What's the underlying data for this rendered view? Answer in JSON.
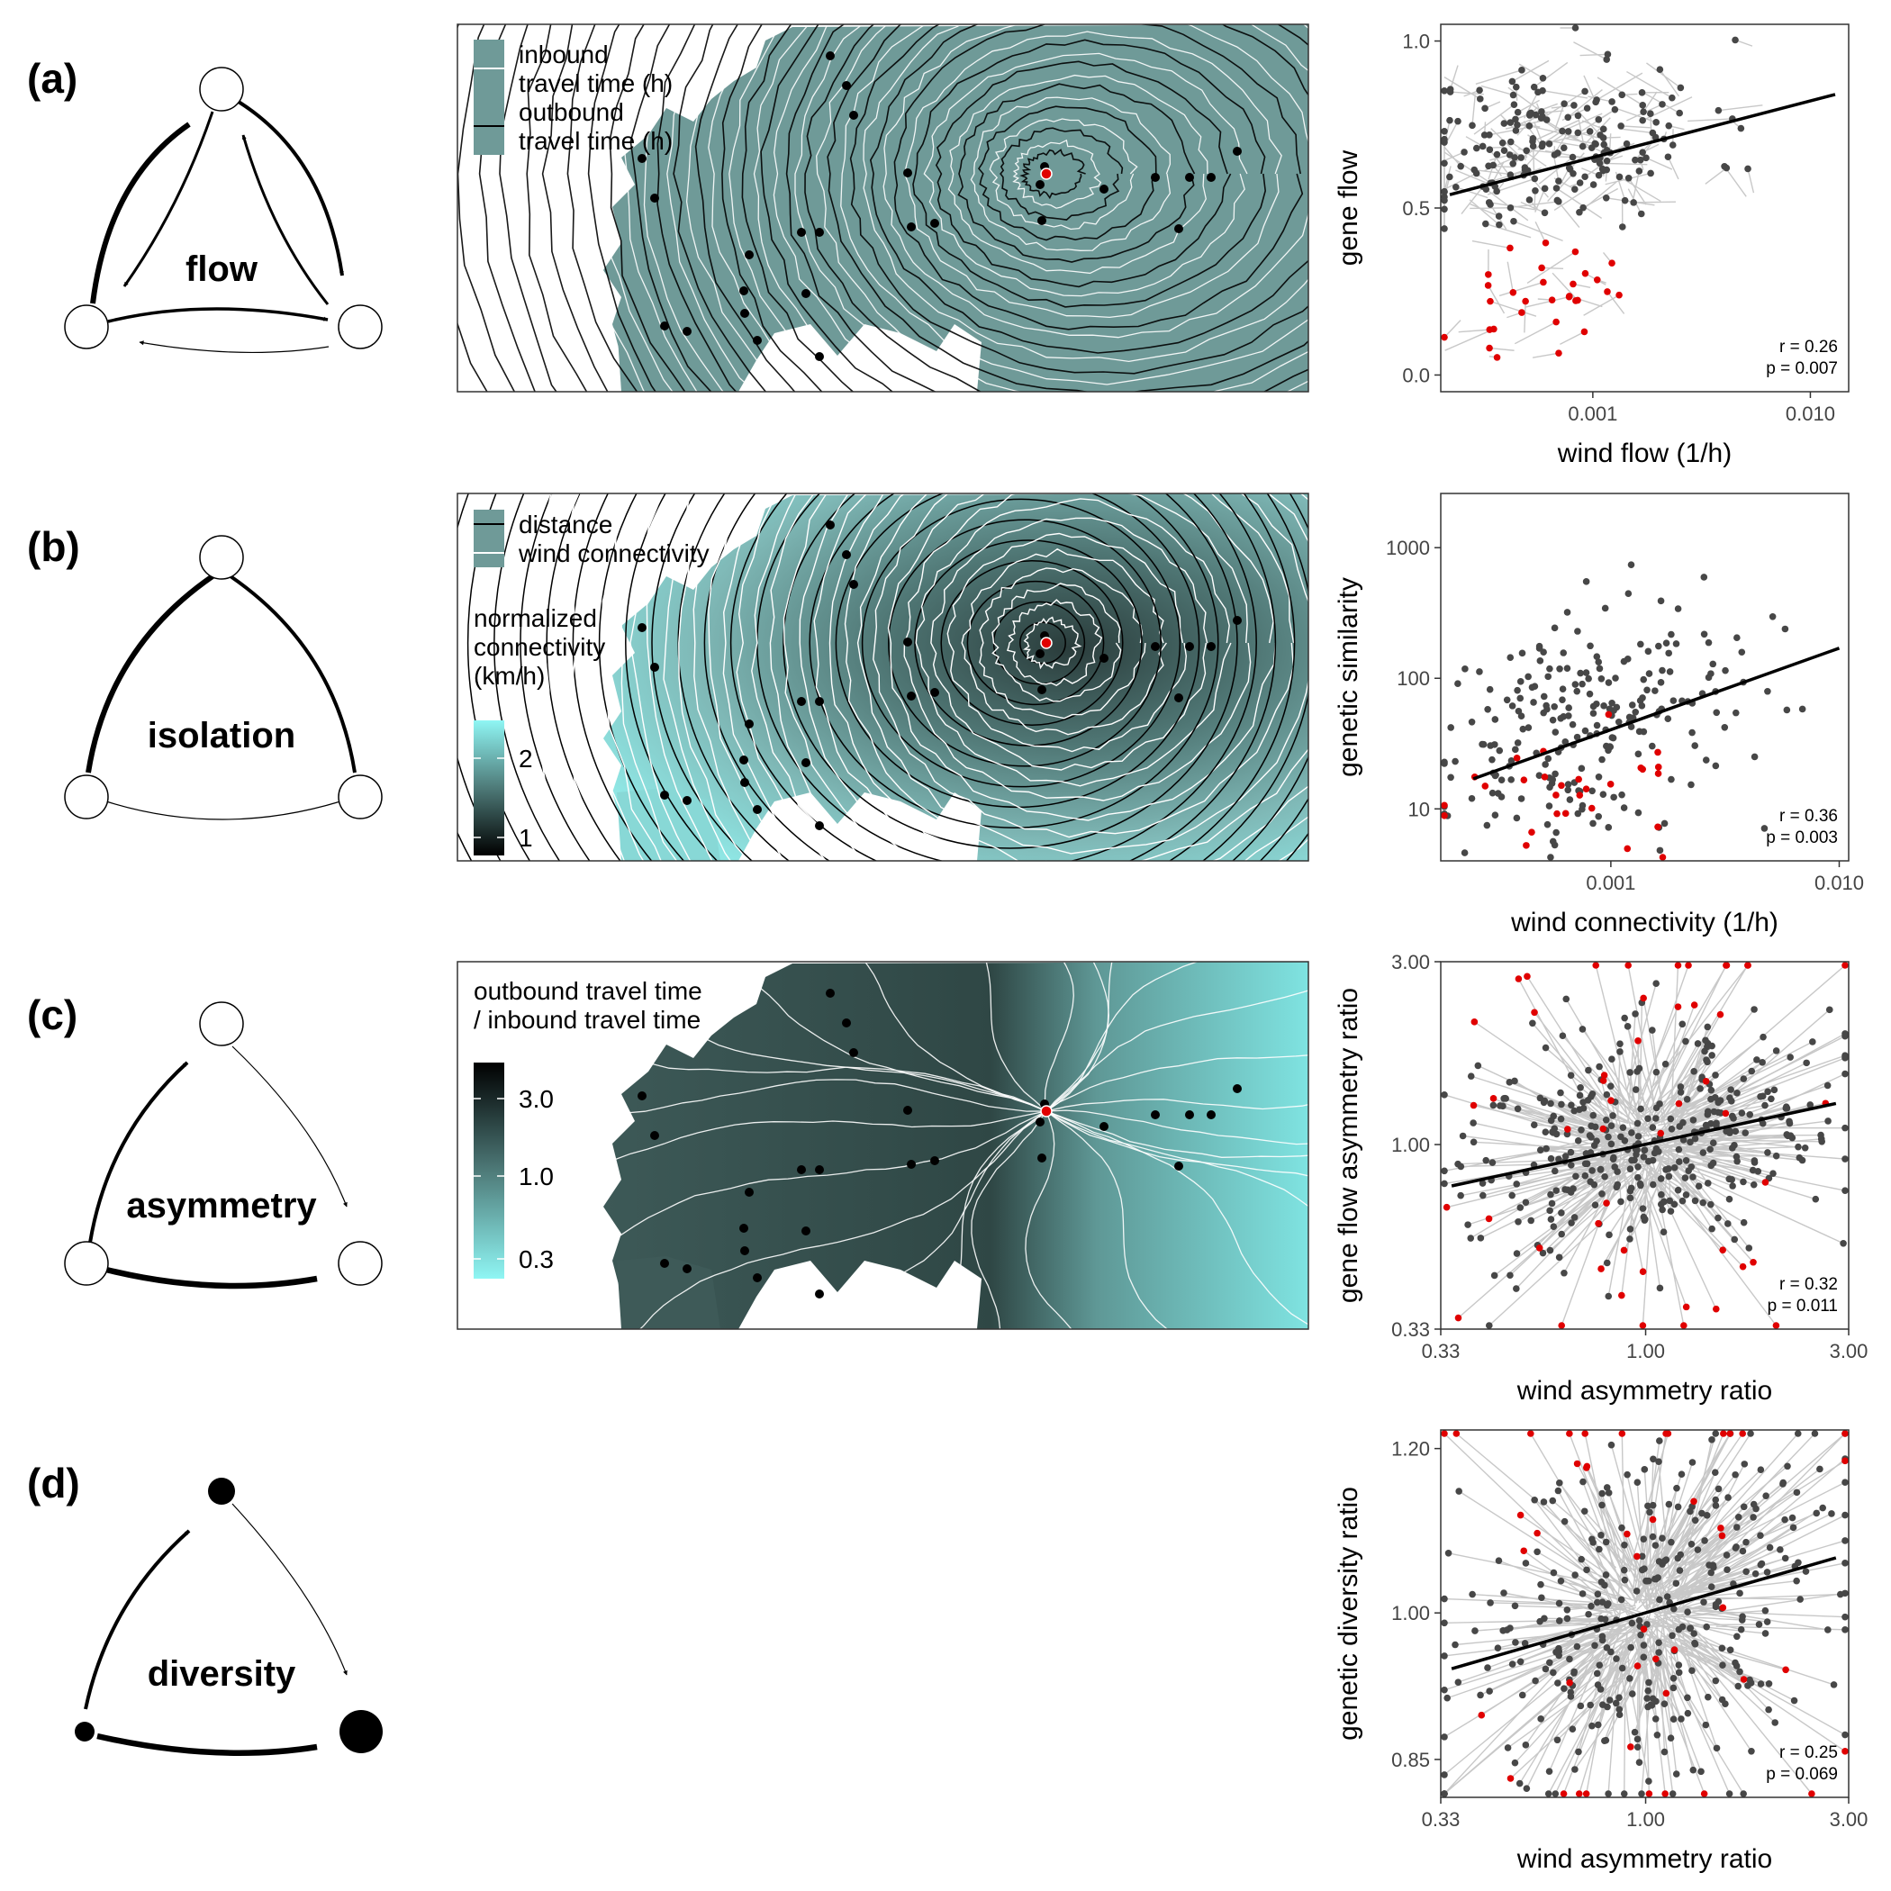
{
  "panels": [
    {
      "label": "(a)",
      "diagram": {
        "word": "flow"
      },
      "map": {
        "legend": [
          {
            "kind": "white-line",
            "text1": "inbound",
            "text2": "travel time (h)"
          },
          {
            "kind": "black-line",
            "text1": "outbound",
            "text2": "travel time (h)"
          }
        ]
      },
      "scatter": {
        "ylabel": "gene flow",
        "xlabel": "wind flow (1/h)",
        "xscale": "log",
        "yscale": "linear",
        "xlim": [
          0.0002,
          0.015
        ],
        "ylim": [
          -0.05,
          1.05
        ],
        "xticks": [
          {
            "v": 0.001,
            "t": "0.001"
          },
          {
            "v": 0.01,
            "t": "0.010"
          }
        ],
        "yticks": [
          {
            "v": 0.0,
            "t": "0.0"
          },
          {
            "v": 0.5,
            "t": "0.5"
          },
          {
            "v": 1.0,
            "t": "1.0"
          }
        ],
        "stats": [
          "r = 0.26",
          "p = 0.007"
        ],
        "fit": {
          "x1": 0.00022,
          "y1": 0.54,
          "x2": 0.013,
          "y2": 0.84
        },
        "connectors": true,
        "seed": 11,
        "cloud": {
          "cx": 0.0007,
          "cy": 0.69,
          "sx": 0.35,
          "sy": 0.13,
          "n": 190,
          "corr": 0.2
        },
        "red": {
          "cx": 0.0006,
          "cy": 0.25,
          "sx": 0.2,
          "sy": 0.08,
          "n": 30
        }
      }
    },
    {
      "label": "(b)",
      "diagram": {
        "word": "isolation"
      },
      "map": {
        "legend": [
          {
            "kind": "black-line",
            "text1": "distance",
            "text2": ""
          },
          {
            "kind": "white-line",
            "text1": "wind connectivity",
            "text2": ""
          }
        ],
        "colorbar": {
          "title": [
            "normalized",
            "connectivity",
            "(km/h)"
          ],
          "ticks": [
            "2",
            "1"
          ]
        }
      },
      "scatter": {
        "ylabel": "genetic similarity",
        "xlabel": "wind connectivity (1/h)",
        "xscale": "log",
        "yscale": "log",
        "xlim": [
          0.00018,
          0.011
        ],
        "ylim": [
          4,
          2600
        ],
        "xticks": [
          {
            "v": 0.001,
            "t": "0.001"
          },
          {
            "v": 0.01,
            "t": "0.010"
          }
        ],
        "yticks": [
          {
            "v": 10,
            "t": "10"
          },
          {
            "v": 100,
            "t": "100"
          },
          {
            "v": 1000,
            "t": "1000"
          }
        ],
        "stats": [
          "r = 0.36",
          "p = 0.003"
        ],
        "fit": {
          "x1": 0.00025,
          "y1": 17,
          "x2": 0.01,
          "y2": 170
        },
        "connectors": false,
        "seed": 29,
        "cloud": {
          "cx": 0.0007,
          "cy": 45,
          "sx": 0.35,
          "sy": 0.45,
          "n": 230,
          "corr": 0.3
        },
        "red": {
          "cx": 0.0006,
          "cy": 12,
          "sx": 0.25,
          "sy": 0.2,
          "n": 28
        }
      }
    },
    {
      "label": "(c)",
      "diagram": {
        "word": "asymmetry"
      },
      "map": {
        "title": [
          "outbound travel time",
          "/ inbound travel time"
        ],
        "colorbar": {
          "ticks": [
            "3.0",
            "1.0",
            "0.3"
          ]
        }
      },
      "scatter": {
        "ylabel": "gene flow asymmetry ratio",
        "xlabel": "wind asymmetry ratio",
        "xscale": "log",
        "yscale": "log",
        "xlim": [
          0.33,
          3.0
        ],
        "ylim": [
          0.33,
          3.0
        ],
        "xticks": [
          {
            "v": 0.33,
            "t": "0.33"
          },
          {
            "v": 1.0,
            "t": "1.00"
          },
          {
            "v": 3.0,
            "t": "3.00"
          }
        ],
        "yticks": [
          {
            "v": 0.33,
            "t": "0.33"
          },
          {
            "v": 1.0,
            "t": "1.00"
          },
          {
            "v": 3.0,
            "t": "3.00"
          }
        ],
        "stats": [
          "r = 0.32",
          "p = 0.011"
        ],
        "fit": {
          "x1": 0.35,
          "y1": 0.78,
          "x2": 2.8,
          "y2": 1.28
        },
        "connectors": true,
        "radial": true,
        "seed": 47,
        "cloud": {
          "cx": 1.0,
          "cy": 1.0,
          "sx": 0.23,
          "sy": 0.14,
          "n": 380,
          "corr": 0.2
        },
        "red": {
          "cx": 1.0,
          "cy": 1.0,
          "sx": 0.25,
          "sy": 0.38,
          "n": 50
        }
      }
    },
    {
      "label": "(d)",
      "diagram": {
        "word": "diversity"
      },
      "scatter": {
        "ylabel": "genetic diversity ratio",
        "xlabel": "wind asymmetry ratio",
        "xscale": "log",
        "yscale": "log",
        "xlim": [
          0.33,
          3.0
        ],
        "ylim": [
          0.815,
          1.225
        ],
        "xticks": [
          {
            "v": 0.33,
            "t": "0.33"
          },
          {
            "v": 1.0,
            "t": "1.00"
          },
          {
            "v": 3.0,
            "t": "3.00"
          }
        ],
        "yticks": [
          {
            "v": 0.85,
            "t": "0.85"
          },
          {
            "v": 1.0,
            "t": "1.00"
          },
          {
            "v": 1.2,
            "t": "1.20"
          }
        ],
        "stats": [
          "r = 0.25",
          "p = 0.069"
        ],
        "fit": {
          "x1": 0.35,
          "y1": 0.94,
          "x2": 2.8,
          "y2": 1.063
        },
        "connectors": true,
        "radial": true,
        "seed": 83,
        "cloud": {
          "cx": 1.0,
          "cy": 1.0,
          "sx": 0.24,
          "sy": 0.045,
          "n": 360,
          "corr": 0.3
        },
        "red": {
          "cx": 1.0,
          "cy": 1.0,
          "sx": 0.3,
          "sy": 0.09,
          "n": 45
        }
      }
    }
  ],
  "colors": {
    "map_teal": "#6f9a98",
    "map_dark": "#2e4644",
    "map_light": "#7fe8e6",
    "point_dark": "#474747",
    "point_red": "#e00000",
    "connector": "#c8c8c8",
    "focal": "#e00000"
  },
  "chart_data": [
    {
      "type": "scatter",
      "ylabel": "gene flow",
      "xlabel": "wind flow (1/h)",
      "xscale": "log",
      "xlim": [
        0.0002,
        0.015
      ],
      "ylim": [
        -0.05,
        1.05
      ],
      "stats": [
        "r = 0.26",
        "p = 0.007"
      ]
    },
    {
      "type": "scatter",
      "ylabel": "genetic similarity",
      "xlabel": "wind connectivity (1/h)",
      "xscale": "log",
      "yscale": "log",
      "xlim": [
        0.00018,
        0.011
      ],
      "ylim": [
        4,
        2600
      ],
      "stats": [
        "r = 0.36",
        "p = 0.003"
      ]
    },
    {
      "type": "scatter",
      "ylabel": "gene flow asymmetry ratio",
      "xlabel": "wind asymmetry ratio",
      "xscale": "log",
      "yscale": "log",
      "xlim": [
        0.33,
        3.0
      ],
      "ylim": [
        0.33,
        3.0
      ],
      "stats": [
        "r = 0.32",
        "p = 0.011"
      ]
    },
    {
      "type": "scatter",
      "ylabel": "genetic diversity ratio",
      "xlabel": "wind asymmetry ratio",
      "xscale": "log",
      "yscale": "log",
      "xlim": [
        0.33,
        3.0
      ],
      "ylim": [
        0.815,
        1.225
      ],
      "stats": [
        "r = 0.25",
        "p = 0.069"
      ]
    }
  ]
}
